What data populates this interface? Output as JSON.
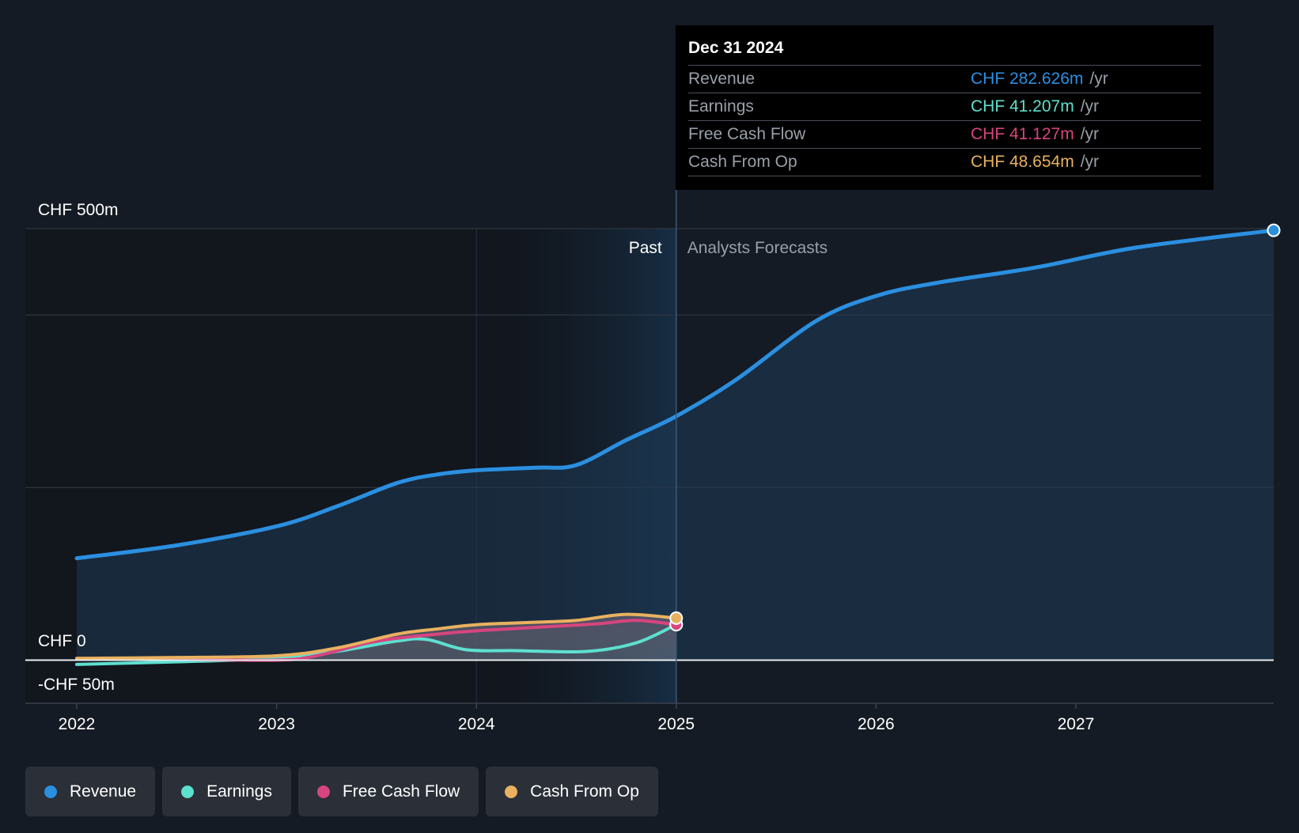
{
  "chart_data": {
    "type": "line",
    "y_unit_labels": {
      "top": "CHF 500m",
      "zero": "CHF 0",
      "bottom": "-CHF 50m"
    },
    "ylim": [
      -50,
      500
    ],
    "xlim": [
      2022.0,
      2027.99
    ],
    "x_ticks": [
      "2022",
      "2023",
      "2024",
      "2025",
      "2026",
      "2027"
    ],
    "grid": true,
    "past_label": "Past",
    "forecast_label": "Analysts Forecasts",
    "divider_x": 2025.0,
    "highlight_start_x": 2024.0,
    "series": [
      {
        "name": "Revenue",
        "color": "#2b8fe0",
        "area": true,
        "points": [
          [
            2022.0,
            118
          ],
          [
            2022.5,
            133
          ],
          [
            2023.0,
            155
          ],
          [
            2023.3,
            178
          ],
          [
            2023.6,
            205
          ],
          [
            2023.8,
            215
          ],
          [
            2024.0,
            220
          ],
          [
            2024.3,
            223
          ],
          [
            2024.5,
            226
          ],
          [
            2024.75,
            255
          ],
          [
            2025.0,
            282.6
          ],
          [
            2025.3,
            325
          ],
          [
            2025.7,
            393
          ],
          [
            2026.0,
            422
          ],
          [
            2026.3,
            437
          ],
          [
            2026.8,
            455
          ],
          [
            2027.3,
            478
          ],
          [
            2027.99,
            498
          ]
        ]
      },
      {
        "name": "Earnings",
        "color": "#5ee0cf",
        "area": false,
        "points": [
          [
            2022.0,
            -5
          ],
          [
            2022.5,
            -2
          ],
          [
            2023.0,
            2
          ],
          [
            2023.3,
            10
          ],
          [
            2023.6,
            22
          ],
          [
            2023.75,
            24
          ],
          [
            2023.95,
            12
          ],
          [
            2024.2,
            11
          ],
          [
            2024.55,
            10
          ],
          [
            2024.8,
            20
          ],
          [
            2025.0,
            41.2
          ]
        ]
      },
      {
        "name": "Free Cash Flow",
        "color": "#d6457f",
        "area": false,
        "points": [
          [
            2022.0,
            2
          ],
          [
            2022.5,
            1
          ],
          [
            2023.0,
            0
          ],
          [
            2023.2,
            5
          ],
          [
            2023.5,
            22
          ],
          [
            2023.8,
            30
          ],
          [
            2024.0,
            34
          ],
          [
            2024.3,
            38
          ],
          [
            2024.6,
            42
          ],
          [
            2024.8,
            46
          ],
          [
            2025.0,
            41.1
          ]
        ]
      },
      {
        "name": "Cash From Op",
        "color": "#e9b15f",
        "area": false,
        "points": [
          [
            2022.0,
            2
          ],
          [
            2022.5,
            3
          ],
          [
            2023.0,
            5
          ],
          [
            2023.3,
            14
          ],
          [
            2023.6,
            30
          ],
          [
            2023.8,
            36
          ],
          [
            2024.0,
            41
          ],
          [
            2024.3,
            44
          ],
          [
            2024.5,
            46
          ],
          [
            2024.75,
            53
          ],
          [
            2025.0,
            48.7
          ]
        ]
      }
    ]
  },
  "tooltip": {
    "date": "Dec 31 2024",
    "rows": [
      {
        "label": "Revenue",
        "value": "CHF 282.626m",
        "unit": "/yr",
        "color": "#2b8fe0"
      },
      {
        "label": "Earnings",
        "value": "CHF 41.207m",
        "unit": "/yr",
        "color": "#5ee0cf"
      },
      {
        "label": "Free Cash Flow",
        "value": "CHF 41.127m",
        "unit": "/yr",
        "color": "#d6457f"
      },
      {
        "label": "Cash From Op",
        "value": "CHF 48.654m",
        "unit": "/yr",
        "color": "#e9b15f"
      }
    ]
  },
  "legend": [
    {
      "label": "Revenue",
      "color": "#2b8fe0"
    },
    {
      "label": "Earnings",
      "color": "#5ee0cf"
    },
    {
      "label": "Free Cash Flow",
      "color": "#d6457f"
    },
    {
      "label": "Cash From Op",
      "color": "#e9b15f"
    }
  ]
}
